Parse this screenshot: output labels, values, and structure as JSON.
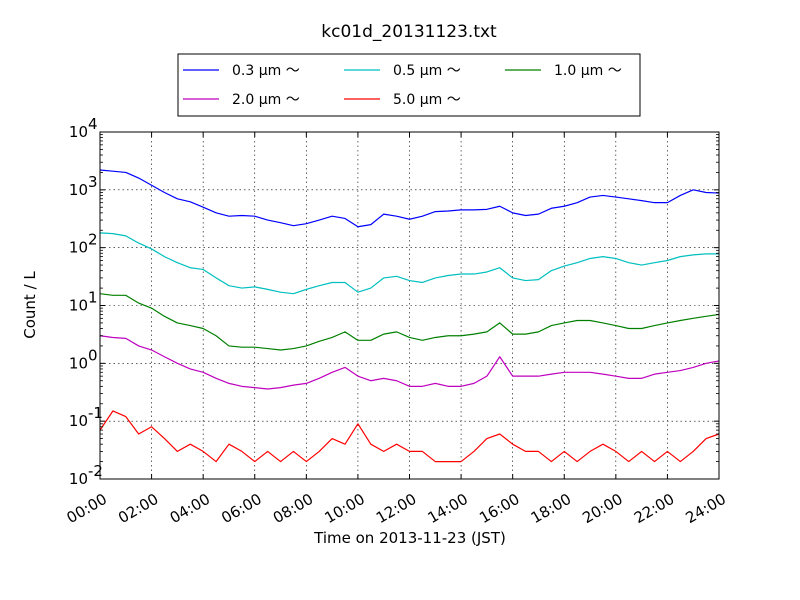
{
  "chart_data": {
    "type": "line",
    "title": "kc01d_20131123.txt",
    "xlabel": "Time on 2013-11-23 (JST)",
    "ylabel": "Count / L",
    "x_unit": "hours",
    "xlim": [
      0,
      24
    ],
    "ylim": [
      0.01,
      10000
    ],
    "yscale": "log",
    "grid": true,
    "legend_position": "top-center, above plot",
    "x_ticks": [
      {
        "value": 0,
        "label": "00:00"
      },
      {
        "value": 2,
        "label": "02:00"
      },
      {
        "value": 4,
        "label": "04:00"
      },
      {
        "value": 6,
        "label": "06:00"
      },
      {
        "value": 8,
        "label": "08:00"
      },
      {
        "value": 10,
        "label": "10:00"
      },
      {
        "value": 12,
        "label": "12:00"
      },
      {
        "value": 14,
        "label": "14:00"
      },
      {
        "value": 16,
        "label": "16:00"
      },
      {
        "value": 18,
        "label": "18:00"
      },
      {
        "value": 20,
        "label": "20:00"
      },
      {
        "value": 22,
        "label": "22:00"
      },
      {
        "value": 24,
        "label": "24:00"
      }
    ],
    "y_ticks": [
      {
        "value": 0.01,
        "base": "10",
        "exp": "-2"
      },
      {
        "value": 0.1,
        "base": "10",
        "exp": "-1"
      },
      {
        "value": 1,
        "base": "10",
        "exp": "0"
      },
      {
        "value": 10,
        "base": "10",
        "exp": "1"
      },
      {
        "value": 100,
        "base": "10",
        "exp": "2"
      },
      {
        "value": 1000,
        "base": "10",
        "exp": "3"
      },
      {
        "value": 10000,
        "base": "10",
        "exp": "4"
      }
    ],
    "series": [
      {
        "name": "0.3 μm ～",
        "color": "#0000ff",
        "x": [
          0,
          0.5,
          1,
          1.5,
          2,
          2.5,
          3,
          3.5,
          4,
          4.5,
          5,
          5.5,
          6,
          6.5,
          7,
          7.5,
          8,
          8.5,
          9,
          9.5,
          10,
          10.5,
          11,
          11.5,
          12,
          12.5,
          13,
          13.5,
          14,
          14.5,
          15,
          15.5,
          16,
          16.5,
          17,
          17.5,
          18,
          18.5,
          19,
          19.5,
          20,
          20.5,
          21,
          21.5,
          22,
          22.5,
          23,
          23.5,
          24
        ],
        "values": [
          2200,
          2100,
          2000,
          1600,
          1200,
          900,
          700,
          620,
          500,
          400,
          350,
          360,
          350,
          300,
          270,
          240,
          260,
          300,
          350,
          320,
          230,
          250,
          380,
          350,
          310,
          350,
          420,
          430,
          450,
          450,
          460,
          520,
          400,
          360,
          380,
          480,
          520,
          600,
          750,
          800,
          750,
          700,
          650,
          600,
          600,
          800,
          1000,
          900,
          880
        ]
      },
      {
        "name": "0.5 μm ～",
        "color": "#00bfbf",
        "x": [
          0,
          0.5,
          1,
          1.5,
          2,
          2.5,
          3,
          3.5,
          4,
          4.5,
          5,
          5.5,
          6,
          6.5,
          7,
          7.5,
          8,
          8.5,
          9,
          9.5,
          10,
          10.5,
          11,
          11.5,
          12,
          12.5,
          13,
          13.5,
          14,
          14.5,
          15,
          15.5,
          16,
          16.5,
          17,
          17.5,
          18,
          18.5,
          19,
          19.5,
          20,
          20.5,
          21,
          21.5,
          22,
          22.5,
          23,
          23.5,
          24
        ],
        "values": [
          180,
          175,
          160,
          120,
          95,
          70,
          55,
          45,
          42,
          30,
          22,
          20,
          21,
          19,
          17,
          16,
          19,
          22,
          25,
          25,
          17,
          20,
          30,
          32,
          27,
          25,
          30,
          33,
          35,
          35,
          38,
          45,
          30,
          27,
          28,
          40,
          48,
          55,
          65,
          70,
          65,
          55,
          50,
          55,
          60,
          70,
          75,
          78,
          78
        ]
      },
      {
        "name": "1.0 μm ～",
        "color": "#008000",
        "x": [
          0,
          0.5,
          1,
          1.5,
          2,
          2.5,
          3,
          3.5,
          4,
          4.5,
          5,
          5.5,
          6,
          6.5,
          7,
          7.5,
          8,
          8.5,
          9,
          9.5,
          10,
          10.5,
          11,
          11.5,
          12,
          12.5,
          13,
          13.5,
          14,
          14.5,
          15,
          15.5,
          16,
          16.5,
          17,
          17.5,
          18,
          18.5,
          19,
          19.5,
          20,
          20.5,
          21,
          21.5,
          22,
          22.5,
          23,
          23.5,
          24
        ],
        "values": [
          16,
          15,
          15,
          11,
          9,
          6.5,
          5,
          4.5,
          4,
          3,
          2,
          1.9,
          1.9,
          1.8,
          1.7,
          1.8,
          2,
          2.4,
          2.8,
          3.5,
          2.5,
          2.5,
          3.2,
          3.5,
          2.8,
          2.5,
          2.8,
          3,
          3,
          3.2,
          3.5,
          5,
          3.2,
          3.2,
          3.5,
          4.5,
          5,
          5.5,
          5.5,
          5,
          4.5,
          4,
          4,
          4.5,
          5,
          5.5,
          6,
          6.5,
          7
        ]
      },
      {
        "name": "2.0 μm ～",
        "color": "#bf00bf",
        "x": [
          0,
          0.5,
          1,
          1.5,
          2,
          2.5,
          3,
          3.5,
          4,
          4.5,
          5,
          5.5,
          6,
          6.5,
          7,
          7.5,
          8,
          8.5,
          9,
          9.5,
          10,
          10.5,
          11,
          11.5,
          12,
          12.5,
          13,
          13.5,
          14,
          14.5,
          15,
          15.5,
          16,
          16.5,
          17,
          17.5,
          18,
          18.5,
          19,
          19.5,
          20,
          20.5,
          21,
          21.5,
          22,
          22.5,
          23,
          23.5,
          24
        ],
        "values": [
          3,
          2.8,
          2.7,
          2,
          1.7,
          1.3,
          1,
          0.8,
          0.7,
          0.55,
          0.45,
          0.4,
          0.38,
          0.36,
          0.38,
          0.42,
          0.45,
          0.55,
          0.7,
          0.85,
          0.6,
          0.5,
          0.55,
          0.5,
          0.4,
          0.4,
          0.45,
          0.4,
          0.4,
          0.45,
          0.6,
          1.3,
          0.6,
          0.6,
          0.6,
          0.65,
          0.7,
          0.7,
          0.7,
          0.65,
          0.6,
          0.55,
          0.55,
          0.65,
          0.7,
          0.75,
          0.85,
          1,
          1.1
        ]
      },
      {
        "name": "5.0 μm ～",
        "color": "#ff0000",
        "x": [
          0,
          0.5,
          1,
          1.5,
          2,
          2.5,
          3,
          3.5,
          4,
          4.5,
          5,
          5.5,
          6,
          6.5,
          7,
          7.5,
          8,
          8.5,
          9,
          9.5,
          10,
          10.5,
          11,
          11.5,
          12,
          12.5,
          13,
          13.5,
          14,
          14.5,
          15,
          15.5,
          16,
          16.5,
          17,
          17.5,
          18,
          18.5,
          19,
          19.5,
          20,
          20.5,
          21,
          21.5,
          22,
          22.5,
          23,
          23.5,
          24
        ],
        "values": [
          0.07,
          0.15,
          0.12,
          0.06,
          0.08,
          0.05,
          0.03,
          0.04,
          0.03,
          0.02,
          0.04,
          0.03,
          0.02,
          0.03,
          0.02,
          0.03,
          0.02,
          0.03,
          0.05,
          0.04,
          0.09,
          0.04,
          0.03,
          0.04,
          0.03,
          0.03,
          0.02,
          0.02,
          0.02,
          0.03,
          0.05,
          0.06,
          0.04,
          0.03,
          0.03,
          0.02,
          0.03,
          0.02,
          0.03,
          0.04,
          0.03,
          0.02,
          0.03,
          0.02,
          0.03,
          0.02,
          0.03,
          0.05,
          0.06
        ]
      }
    ]
  }
}
